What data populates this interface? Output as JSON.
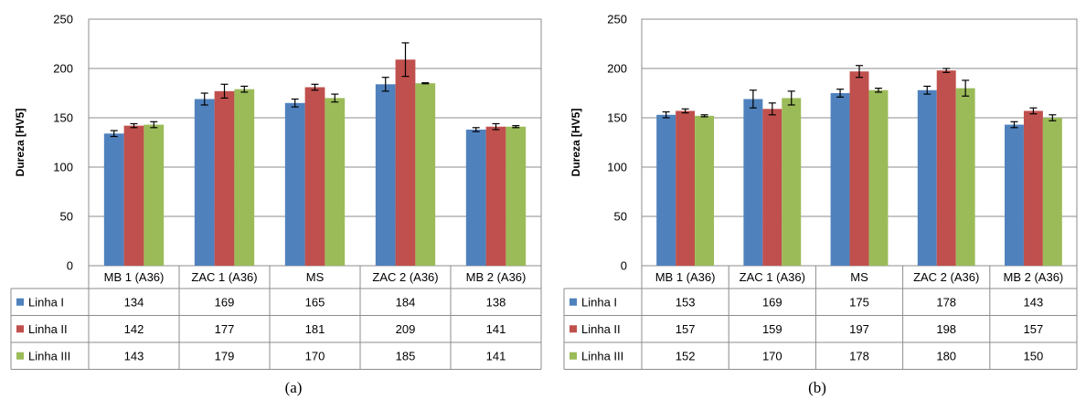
{
  "colors": {
    "Linha I": "#4f81bd",
    "Linha II": "#c0504d",
    "Linha III": "#9bbb59"
  },
  "chart_data": [
    {
      "type": "bar",
      "caption": "(a)",
      "ylabel": "Dureza [HV5]",
      "ylim": [
        0,
        250
      ],
      "yticks": [
        0,
        50,
        100,
        150,
        200,
        250
      ],
      "grid": true,
      "legend": "data-table",
      "categories": [
        "MB 1 (A36)",
        "ZAC 1 (A36)",
        "MS",
        "ZAC 2 (A36)",
        "MB 2 (A36)"
      ],
      "series": [
        {
          "name": "Linha I",
          "values": [
            134,
            169,
            165,
            184,
            138
          ],
          "errors": [
            3,
            6,
            4,
            7,
            2
          ]
        },
        {
          "name": "Linha II",
          "values": [
            142,
            177,
            181,
            209,
            141
          ],
          "errors": [
            2,
            7,
            3,
            17,
            3
          ]
        },
        {
          "name": "Linha III",
          "values": [
            143,
            179,
            170,
            185,
            141
          ],
          "errors": [
            3,
            3,
            4,
            0.5,
            1
          ]
        }
      ]
    },
    {
      "type": "bar",
      "caption": "(b)",
      "ylabel": "Dureza [HV5]",
      "ylim": [
        0,
        250
      ],
      "yticks": [
        0,
        50,
        100,
        150,
        200,
        250
      ],
      "grid": true,
      "legend": "data-table",
      "categories": [
        "MB 1 (A36)",
        "ZAC 1 (A36)",
        "MS",
        "ZAC 2 (A36)",
        "MB 2 (A36)"
      ],
      "series": [
        {
          "name": "Linha I",
          "values": [
            153,
            169,
            175,
            178,
            143
          ],
          "errors": [
            3,
            9,
            4,
            4,
            3
          ]
        },
        {
          "name": "Linha II",
          "values": [
            157,
            159,
            197,
            198,
            157
          ],
          "errors": [
            2,
            6,
            6,
            2,
            3
          ]
        },
        {
          "name": "Linha III",
          "values": [
            152,
            170,
            178,
            180,
            150
          ],
          "errors": [
            1,
            7,
            2,
            8,
            3
          ]
        }
      ]
    }
  ]
}
